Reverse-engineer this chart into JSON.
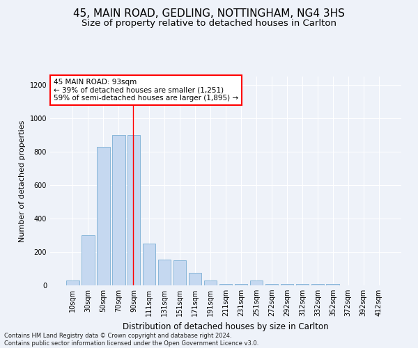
{
  "title1": "45, MAIN ROAD, GEDLING, NOTTINGHAM, NG4 3HS",
  "title2": "Size of property relative to detached houses in Carlton",
  "xlabel": "Distribution of detached houses by size in Carlton",
  "ylabel": "Number of detached properties",
  "categories": [
    "10sqm",
    "30sqm",
    "50sqm",
    "70sqm",
    "90sqm",
    "111sqm",
    "131sqm",
    "151sqm",
    "171sqm",
    "191sqm",
    "211sqm",
    "231sqm",
    "251sqm",
    "272sqm",
    "292sqm",
    "312sqm",
    "332sqm",
    "352sqm",
    "372sqm",
    "392sqm",
    "412sqm"
  ],
  "values": [
    28,
    300,
    830,
    900,
    900,
    248,
    155,
    150,
    75,
    28,
    8,
    8,
    28,
    8,
    8,
    8,
    8,
    8,
    0,
    0,
    0
  ],
  "bar_color": "#c5d8f0",
  "bar_edge_color": "#7bafd4",
  "vline_x": 4,
  "vline_color": "red",
  "annotation_text": "45 MAIN ROAD: 93sqm\n← 39% of detached houses are smaller (1,251)\n59% of semi-detached houses are larger (1,895) →",
  "annotation_box_color": "white",
  "annotation_box_edge_color": "red",
  "ylim": [
    0,
    1250
  ],
  "yticks": [
    0,
    200,
    400,
    600,
    800,
    1000,
    1200
  ],
  "footnote": "Contains HM Land Registry data © Crown copyright and database right 2024.\nContains public sector information licensed under the Open Government Licence v3.0.",
  "bg_color": "#eef2f9",
  "plot_bg_color": "#eef2f9",
  "title1_fontsize": 11,
  "title2_fontsize": 9.5,
  "xlabel_fontsize": 8.5,
  "ylabel_fontsize": 8,
  "tick_fontsize": 7,
  "annot_fontsize": 7.5,
  "footnote_fontsize": 6
}
